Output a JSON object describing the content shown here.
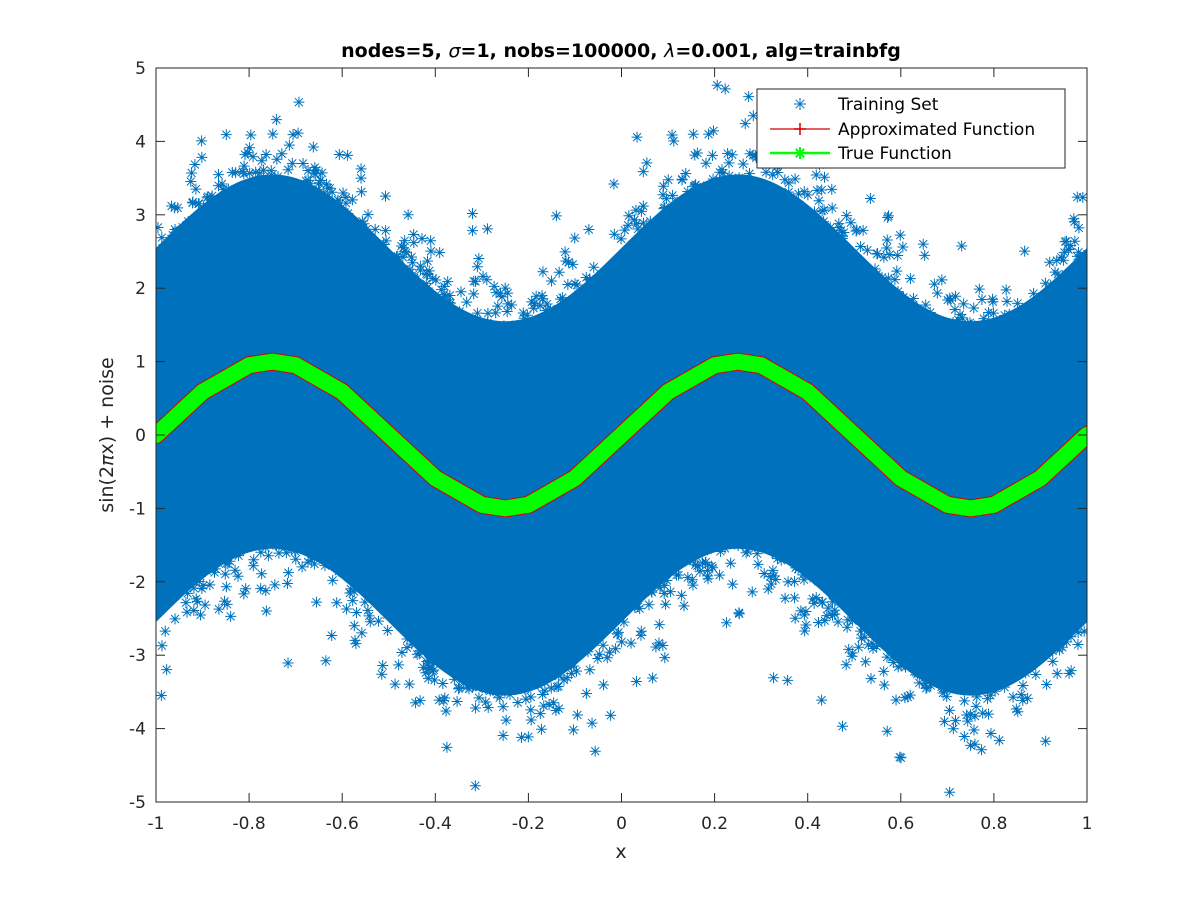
{
  "chart_data": {
    "type": "scatter",
    "title_parts": [
      {
        "text": "nodes=5, ",
        "italic": false
      },
      {
        "text": "σ",
        "italic": true
      },
      {
        "text": "=1, nobs=100000, ",
        "italic": false
      },
      {
        "text": "λ",
        "italic": true
      },
      {
        "text": "=0.001, alg=trainbfg",
        "italic": false
      }
    ],
    "xlabel": "x",
    "ylabel_parts": [
      {
        "text": "sin(2",
        "italic": false
      },
      {
        "text": "π",
        "italic": true
      },
      {
        "text": "x) + noise",
        "italic": false
      }
    ],
    "xlim": [
      -1,
      1
    ],
    "ylim": [
      -5,
      5
    ],
    "xticks": [
      -1,
      -0.8,
      -0.6,
      -0.4,
      -0.2,
      0,
      0.2,
      0.4,
      0.6,
      0.8,
      1
    ],
    "xtick_labels": [
      "-1",
      "-0.8",
      "-0.6",
      "-0.4",
      "-0.2",
      "0",
      "0.2",
      "0.4",
      "0.6",
      "0.8",
      "1"
    ],
    "yticks": [
      -5,
      -4,
      -3,
      -2,
      -1,
      0,
      1,
      2,
      3,
      4,
      5
    ],
    "ytick_labels": [
      "-5",
      "-4",
      "-3",
      "-2",
      "-1",
      "0",
      "1",
      "2",
      "3",
      "4",
      "5"
    ],
    "grid": false,
    "legend_position": "top-right",
    "series": [
      {
        "name": "Training Set",
        "kind": "scatter",
        "marker": "asterisk",
        "color": "#0072BD",
        "n_points": 100000,
        "model": "sin(2πx) + gaussian noise",
        "noise_sigma": 1
      },
      {
        "name": "Approximated Function",
        "kind": "line",
        "marker": "plus",
        "color": "#D40000",
        "x": [
          -1,
          -0.9,
          -0.8,
          -0.75,
          -0.7,
          -0.6,
          -0.5,
          -0.4,
          -0.3,
          -0.25,
          -0.2,
          -0.1,
          0,
          0.1,
          0.2,
          0.25,
          0.3,
          0.4,
          0.5,
          0.6,
          0.7,
          0.75,
          0.8,
          0.9,
          1
        ],
        "y": [
          0.0,
          0.59,
          0.96,
          1.02,
          0.96,
          0.6,
          0.0,
          -0.6,
          -0.96,
          -1.01,
          -0.96,
          -0.59,
          0.0,
          0.59,
          0.96,
          1.02,
          0.96,
          0.6,
          0.0,
          -0.6,
          -0.96,
          -1.01,
          -0.96,
          -0.59,
          0.0
        ]
      },
      {
        "name": "True Function",
        "kind": "line",
        "marker": "asterisk",
        "color": "#00FF00",
        "x": [
          -1,
          -0.9,
          -0.8,
          -0.75,
          -0.7,
          -0.6,
          -0.5,
          -0.4,
          -0.3,
          -0.25,
          -0.2,
          -0.1,
          0,
          0.1,
          0.2,
          0.25,
          0.3,
          0.4,
          0.5,
          0.6,
          0.7,
          0.75,
          0.8,
          0.9,
          1
        ],
        "y": [
          0.0,
          0.588,
          0.951,
          1.0,
          0.951,
          0.588,
          0.0,
          -0.588,
          -0.951,
          -1.0,
          -0.951,
          -0.588,
          0.0,
          0.588,
          0.951,
          1.0,
          0.951,
          0.588,
          0.0,
          -0.588,
          -0.951,
          -1.0,
          -0.951,
          -0.588,
          0.0
        ]
      }
    ]
  }
}
